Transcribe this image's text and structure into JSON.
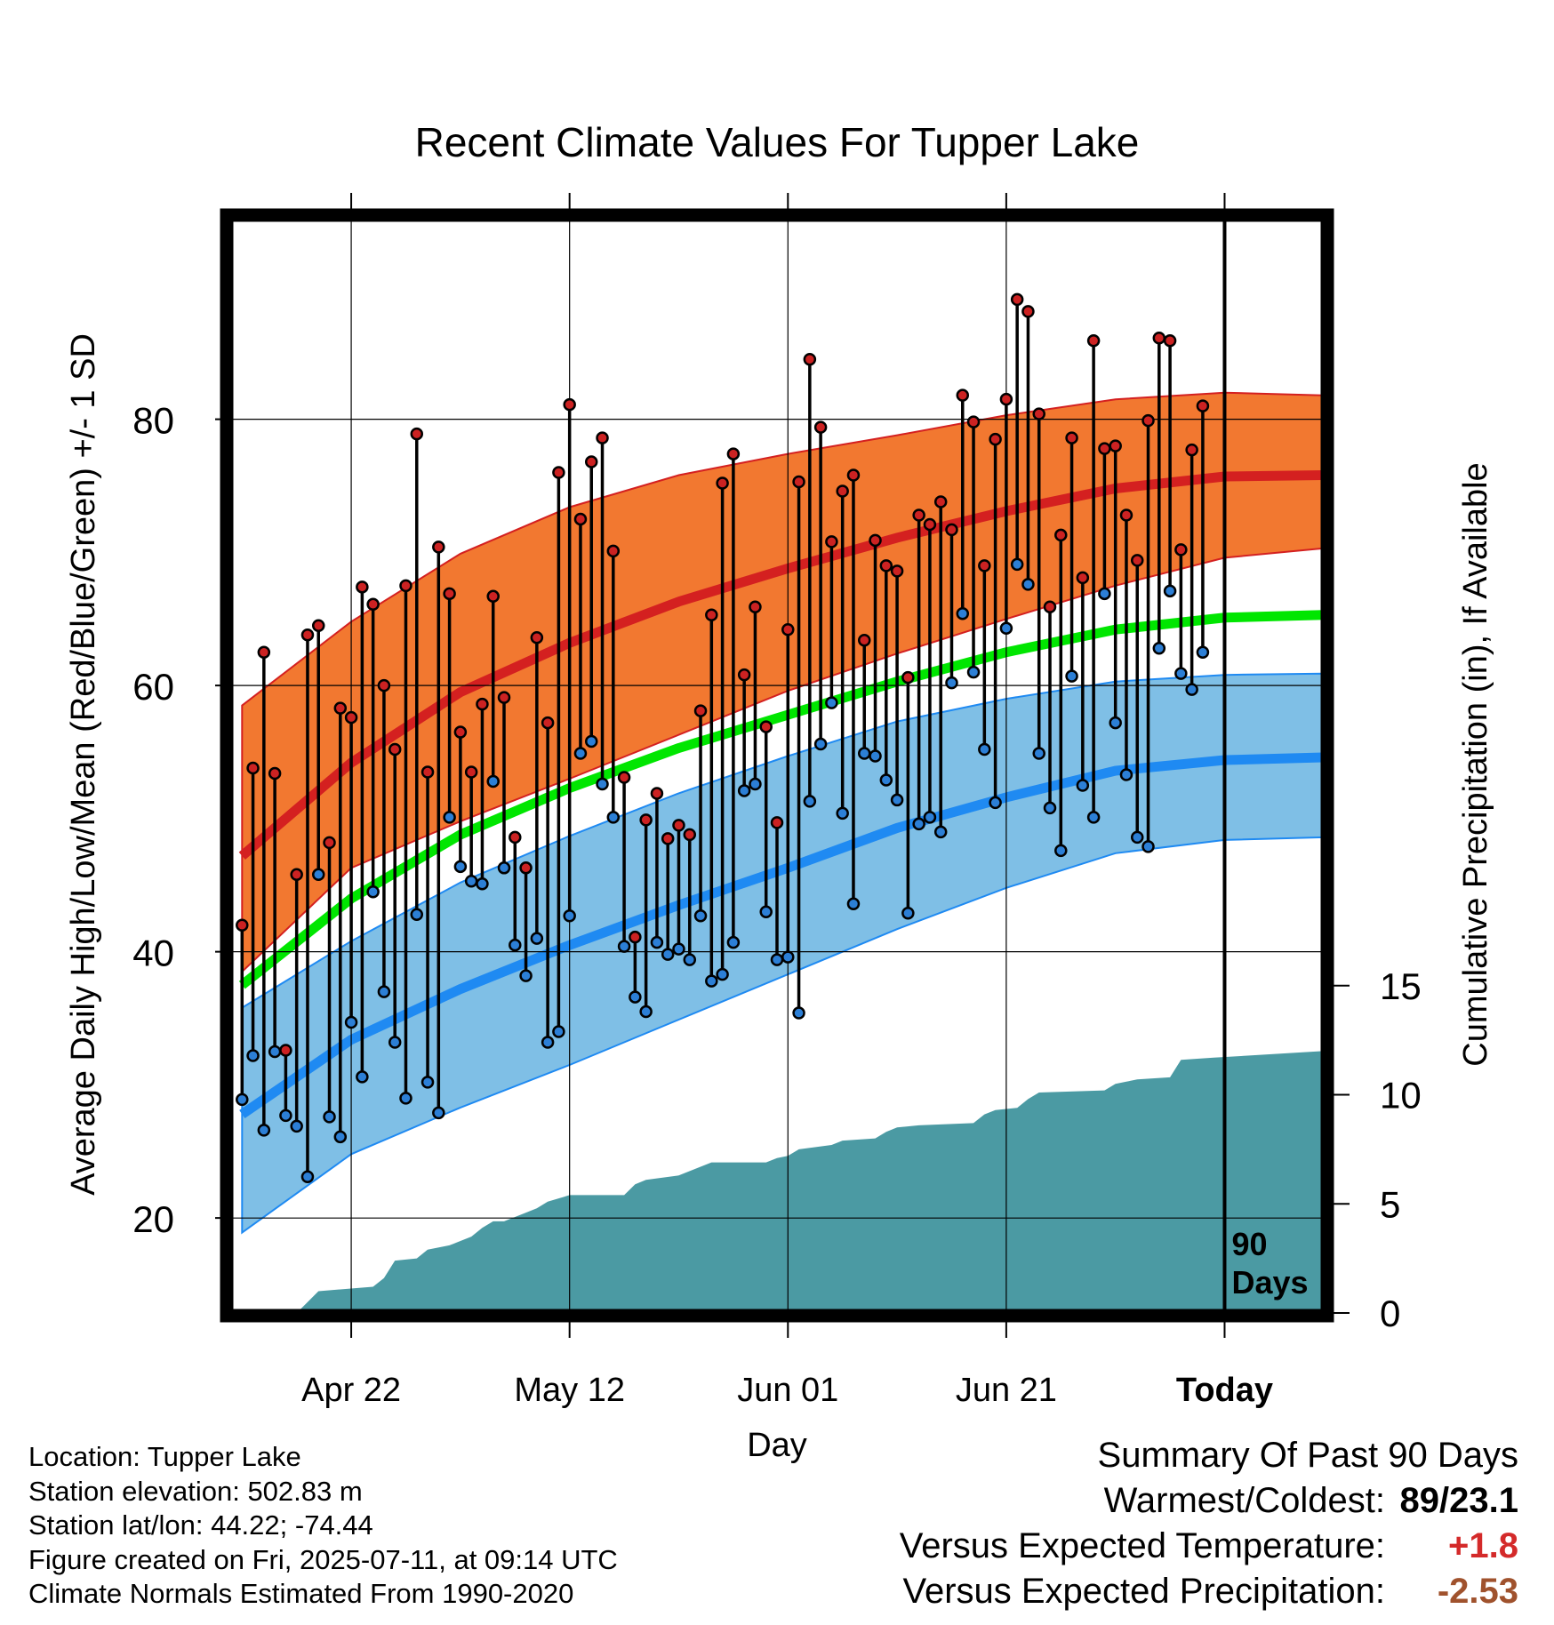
{
  "chart_data": {
    "type": "line",
    "title": "Recent Climate Values For Tupper Lake",
    "xlabel": "Day",
    "ylabel": "Average Daily High/Low/Mean (Red/Blue/Green) +/- 1 SD",
    "y2label": "Cumulative Precipitation (in), If Available",
    "x_tick_labels": [
      "Apr 22",
      "May 12",
      "Jun 01",
      "Jun 21",
      "Today"
    ],
    "x_tick_days": [
      10,
      30,
      50,
      70,
      90
    ],
    "y_ticks": [
      20,
      40,
      60,
      80
    ],
    "y2_ticks": [
      0,
      5,
      10,
      15
    ],
    "ylim": [
      13,
      95
    ],
    "y2lim": [
      0,
      100
    ],
    "xlim": [
      -1,
      99
    ],
    "today_marker_label_line1": "90",
    "today_marker_label_line2": "Days",
    "colors": {
      "high_band": "#f27830",
      "high_line": "#d42020",
      "low_band": "#7fbfe6",
      "low_line": "#1f8af2",
      "mean_line": "#00e600",
      "precip": "#4b9aa3",
      "high_marker": "#cc2222",
      "low_marker": "#2c7fd6"
    },
    "normals": {
      "days": [
        0,
        10,
        20,
        30,
        40,
        50,
        60,
        70,
        80,
        90,
        99
      ],
      "high_mean": [
        47.2,
        54.2,
        59.5,
        63.2,
        66.3,
        68.8,
        71.1,
        73.1,
        74.8,
        75.7,
        75.8
      ],
      "high_upper": [
        58.5,
        64.8,
        69.9,
        73.4,
        75.8,
        77.4,
        78.8,
        80.3,
        81.5,
        82.0,
        81.8
      ],
      "high_lower": [
        38.5,
        46.3,
        49.8,
        53.0,
        56.3,
        59.6,
        62.4,
        65.0,
        67.5,
        69.6,
        70.3
      ],
      "mean": [
        37.5,
        44.0,
        48.8,
        52.3,
        55.3,
        57.8,
        60.3,
        62.5,
        64.2,
        65.1,
        65.3
      ],
      "low_mean": [
        27.8,
        33.4,
        37.2,
        40.5,
        43.5,
        46.3,
        49.3,
        51.6,
        53.6,
        54.4,
        54.6
      ],
      "low_upper": [
        35.8,
        40.8,
        45.2,
        48.7,
        51.9,
        54.7,
        57.3,
        59.0,
        60.3,
        60.8,
        60.9
      ],
      "low_lower": [
        18.9,
        24.8,
        28.3,
        31.5,
        34.9,
        38.3,
        41.7,
        44.8,
        47.4,
        48.4,
        48.6
      ]
    },
    "series": [
      {
        "name": "High",
        "values": [
          42,
          53.8,
          62.5,
          53.4,
          32.6,
          45.8,
          63.8,
          64.5,
          48.2,
          58.3,
          57.6,
          67.4,
          66.1,
          60,
          55.2,
          67.5,
          78.9,
          53.5,
          70.4,
          66.9,
          56.5,
          53.5,
          58.6,
          66.7,
          59.1,
          48.6,
          46.3,
          63.6,
          57.2,
          76,
          81.1,
          72.5,
          76.8,
          78.6,
          70.1,
          53.1,
          41.1,
          49.9,
          51.9,
          48.5,
          49.5,
          48.8,
          58.1,
          65.3,
          75.2,
          77.4,
          60.8,
          65.9,
          56.9,
          49.7,
          64.2,
          75.3,
          84.5,
          79.4,
          70.8,
          74.6,
          75.8,
          63.4,
          70.9,
          69,
          68.6,
          60.6,
          72.8,
          72.1,
          73.8,
          71.7,
          81.8,
          79.8,
          69,
          78.5,
          81.5,
          89,
          88.1,
          80.4,
          65.9,
          71.3,
          78.6,
          68.1,
          85.9,
          77.8,
          78,
          72.8,
          69.4,
          79.9,
          86.1,
          85.9,
          70.2,
          77.7,
          81
        ]
      },
      {
        "name": "Low",
        "values": [
          28.9,
          32.2,
          26.6,
          32.5,
          27.7,
          26.9,
          23.1,
          45.8,
          27.6,
          26.1,
          34.7,
          30.6,
          44.5,
          37,
          33.2,
          29,
          42.8,
          30.2,
          27.9,
          50.1,
          46.4,
          45.3,
          45.1,
          52.8,
          46.3,
          40.5,
          38.2,
          41,
          33.2,
          34,
          42.7,
          54.9,
          55.8,
          52.6,
          50.1,
          40.4,
          36.6,
          35.5,
          40.7,
          39.8,
          40.2,
          39.4,
          42.7,
          37.8,
          38.3,
          40.7,
          52.1,
          52.6,
          43,
          39.4,
          39.6,
          35.4,
          51.3,
          55.6,
          58.7,
          50.4,
          43.6,
          54.9,
          54.7,
          52.9,
          51.4,
          42.9,
          49.6,
          50.1,
          49,
          60.2,
          65.4,
          61,
          55.2,
          51.2,
          64.3,
          69.1,
          67.6,
          54.9,
          50.8,
          47.6,
          60.7,
          52.5,
          50.1,
          66.9,
          57.2,
          53.3,
          48.6,
          47.9,
          62.8,
          67.1,
          60.9,
          59.7,
          62.5
        ]
      },
      {
        "name": "Cumulative Precipitation",
        "days": [
          0,
          5,
          6,
          7,
          12,
          13,
          14,
          16,
          17,
          19,
          21,
          22,
          23,
          24,
          26,
          27,
          28,
          30,
          35,
          36,
          37,
          40,
          42,
          43,
          48,
          49,
          50,
          51,
          54,
          55,
          58,
          59,
          60,
          62,
          67,
          68,
          69,
          71,
          72,
          73,
          79,
          80,
          81,
          82,
          85,
          86,
          89,
          99
        ],
        "values": [
          0,
          0,
          0.5,
          1.0,
          1.2,
          1.6,
          2.4,
          2.5,
          2.9,
          3.1,
          3.5,
          3.9,
          4.2,
          4.2,
          4.6,
          4.8,
          5.1,
          5.4,
          5.4,
          5.9,
          6.1,
          6.3,
          6.7,
          6.9,
          6.9,
          7.1,
          7.2,
          7.5,
          7.7,
          7.9,
          8.0,
          8.3,
          8.5,
          8.6,
          8.7,
          9.1,
          9.3,
          9.4,
          9.8,
          10.1,
          10.2,
          10.5,
          10.6,
          10.7,
          10.8,
          11.6,
          11.7,
          12.0
        ]
      }
    ]
  },
  "location": "Location: Tupper Lake",
  "elevation": "Station elevation: 502.83 m",
  "latlon": "Station lat/lon: 44.22; -74.44",
  "created": "Figure created on Fri, 2025-07-11, at 09:14 UTC",
  "normals_period": "Climate Normals Estimated From 1990-2020",
  "summary": {
    "heading": "Summary Of Past 90 Days",
    "warm_cold_label": "Warmest/Coldest:",
    "warm_cold_value": "89/23.1",
    "temp_label": "Versus Expected Temperature:",
    "temp_value": "+1.8",
    "temp_color": "#d42a2a",
    "precip_label": "Versus Expected Precipitation:",
    "precip_value": "-2.53",
    "precip_color": "#a0522d"
  }
}
